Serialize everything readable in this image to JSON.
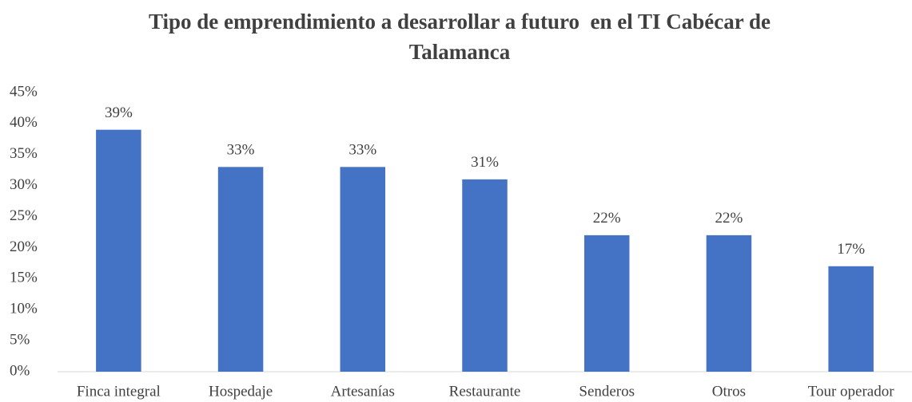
{
  "chart_data": {
    "type": "bar",
    "title": [
      "Tipo de emprendimiento a desarrollar a futuro  en el TI Cabécar de",
      "Talamanca"
    ],
    "categories": [
      "Finca integral",
      "Hospedaje",
      "Artesanías",
      "Restaurante",
      "Senderos",
      "Otros",
      "Tour operador"
    ],
    "values": [
      39,
      33,
      33,
      31,
      22,
      22,
      17
    ],
    "value_labels": [
      "39%",
      "33%",
      "33%",
      "31%",
      "22%",
      "22%",
      "17%"
    ],
    "color": "#4472c4",
    "ylim": [
      0,
      45
    ],
    "yticks": [
      {
        "value": 0,
        "label": "0%"
      },
      {
        "value": 5,
        "label": "5%"
      },
      {
        "value": 10,
        "label": "10%"
      },
      {
        "value": 15,
        "label": "15%"
      },
      {
        "value": 20,
        "label": "20%"
      },
      {
        "value": 25,
        "label": "25%"
      },
      {
        "value": 30,
        "label": "30%"
      },
      {
        "value": 35,
        "label": "35%"
      },
      {
        "value": 40,
        "label": "40%"
      },
      {
        "value": 45,
        "label": "45%"
      }
    ],
    "grid": false
  }
}
